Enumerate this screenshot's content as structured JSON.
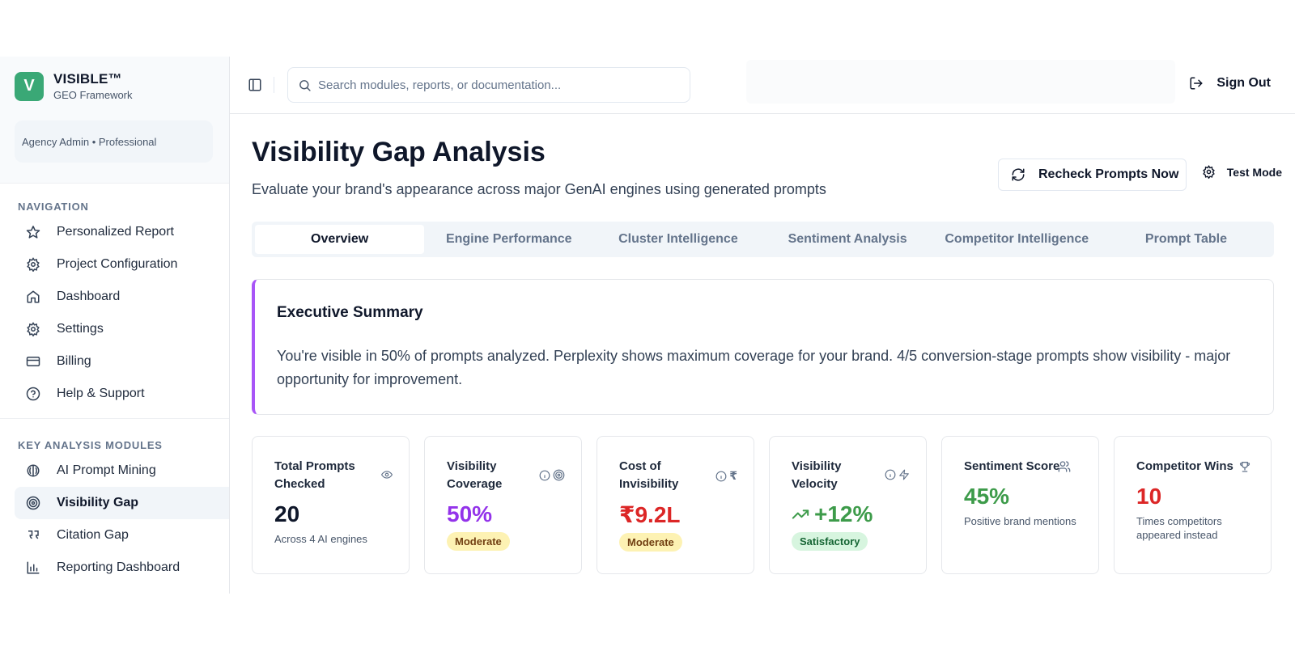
{
  "brand": {
    "logo_letter": "V",
    "name": "VISIBLE™",
    "subtitle": "GEO Framework"
  },
  "account": {
    "label": "Agency Admin • Professional"
  },
  "sidebar": {
    "navigation_heading": "NAVIGATION",
    "navigation": [
      {
        "label": "Personalized Report",
        "icon": "star-icon"
      },
      {
        "label": "Project Configuration",
        "icon": "gear-icon"
      },
      {
        "label": "Dashboard",
        "icon": "home-icon"
      },
      {
        "label": "Settings",
        "icon": "gear-icon"
      },
      {
        "label": "Billing",
        "icon": "credit-card-icon"
      },
      {
        "label": "Help & Support",
        "icon": "help-circle-icon"
      }
    ],
    "modules_heading": "KEY ANALYSIS MODULES",
    "modules": [
      {
        "label": "AI Prompt Mining",
        "icon": "brain-icon"
      },
      {
        "label": "Visibility Gap",
        "icon": "target-icon",
        "active": true
      },
      {
        "label": "Citation Gap",
        "icon": "quote-icon"
      },
      {
        "label": "Reporting Dashboard",
        "icon": "bar-chart-icon"
      }
    ]
  },
  "topbar": {
    "search_placeholder": "Search modules, reports, or documentation...",
    "sign_out_label": "Sign Out"
  },
  "page": {
    "title": "Visibility Gap Analysis",
    "subtitle": "Evaluate your brand's appearance across major GenAI engines using generated prompts",
    "recheck_label": "Recheck Prompts Now",
    "test_mode_label": "Test Mode"
  },
  "tabs": [
    {
      "label": "Overview",
      "active": true
    },
    {
      "label": "Engine Performance"
    },
    {
      "label": "Cluster Intelligence"
    },
    {
      "label": "Sentiment Analysis"
    },
    {
      "label": "Competitor Intelligence"
    },
    {
      "label": "Prompt Table"
    }
  ],
  "summary": {
    "title": "Executive Summary",
    "text": "You're visible in 50% of prompts analyzed. Perplexity shows maximum coverage for your brand. 4/5 conversion-stage prompts show visibility - major opportunity for improvement."
  },
  "cards": {
    "total_prompts": {
      "title": "Total Prompts Checked",
      "value": "20",
      "note": "Across 4 AI engines"
    },
    "coverage": {
      "title": "Visibility Coverage",
      "value": "50%",
      "badge": "Moderate"
    },
    "cost": {
      "title": "Cost of Invisibility",
      "value": "₹9.2L",
      "badge": "Moderate"
    },
    "velocity": {
      "title": "Visibility Velocity",
      "value": "+12%",
      "badge": "Satisfactory"
    },
    "sentiment": {
      "title": "Sentiment Score",
      "value": "45%",
      "note": "Positive brand mentions"
    },
    "competitor": {
      "title": "Competitor Wins",
      "value": "10",
      "note": "Times competitors appeared instead"
    }
  },
  "colors": {
    "brand_green": "#3aa876",
    "accent_purple": "#a855f7",
    "value_purple": "#9333ea",
    "value_red": "#dc2626",
    "value_green": "#3d9b4a"
  }
}
